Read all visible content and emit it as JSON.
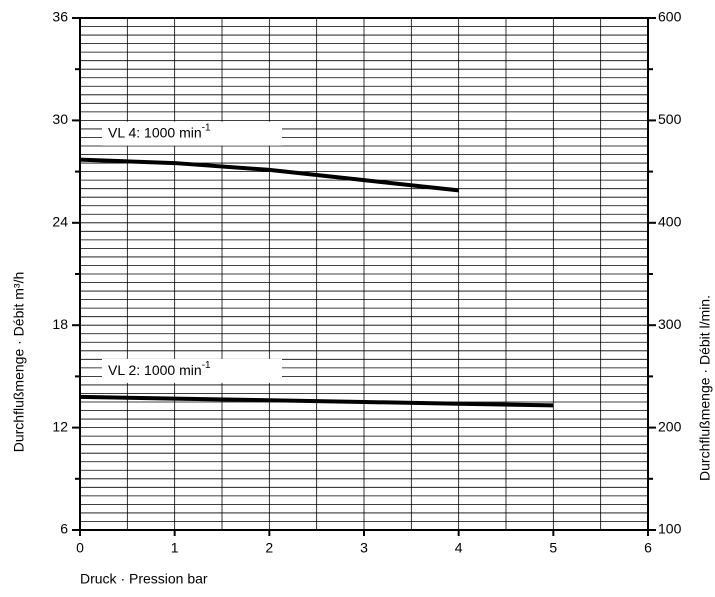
{
  "chart_data": {
    "type": "line",
    "x": [
      0,
      1,
      2,
      3,
      4,
      5
    ],
    "series": [
      {
        "name": "VL 4: 1000 min",
        "name_superscript": "-1",
        "color": "#000000",
        "values": [
          27.7,
          27.5,
          27.1,
          26.5,
          25.9,
          null
        ]
      },
      {
        "name": "VL 2: 1000 min",
        "name_superscript": "-1",
        "color": "#000000",
        "values": [
          13.8,
          13.7,
          13.6,
          13.5,
          13.4,
          13.3
        ]
      }
    ],
    "xlim": [
      0,
      6
    ],
    "xticks": [
      0,
      1,
      2,
      3,
      4,
      5,
      6
    ],
    "ylim": [
      6,
      36
    ],
    "yticks": [
      6,
      12,
      18,
      24,
      30,
      36
    ],
    "y2lim": [
      100,
      600
    ],
    "y2ticks": [
      100,
      200,
      300,
      400,
      500,
      600
    ],
    "yminor_ticks": [
      9,
      15,
      21,
      27,
      33
    ],
    "grid": true,
    "xgrid_step": 0.5,
    "ygrid_step": 0.5,
    "xlabel": "Druck · Pression  bar",
    "ylabel": "Durchflußmenge · Débit  m³/h",
    "y2label": "Durchflußmenge · Débit  l/min."
  }
}
